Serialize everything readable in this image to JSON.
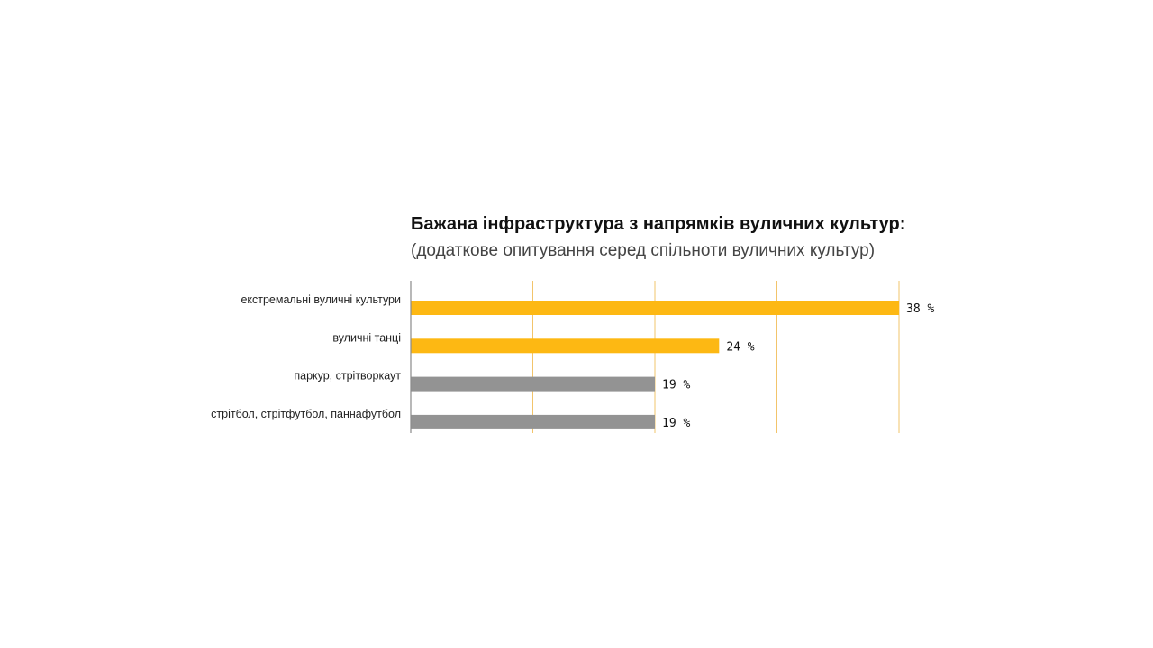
{
  "chart_data": {
    "type": "bar",
    "orientation": "horizontal",
    "title": "Бажана інфраструктура з напрямків вуличних культур:",
    "subtitle": "(додаткове опитування серед спільноти вуличних культур)",
    "categories": [
      "екстремальні вуличні культури",
      "вуличні танці",
      "паркур, стрітворкаут",
      "стрітбол, стрітфутбол, паннафутбол"
    ],
    "values": [
      38,
      24,
      19,
      19
    ],
    "value_labels": [
      "38 %",
      "24 %",
      "19 %",
      "19 %"
    ],
    "bar_colors": [
      "#FDB813",
      "#FDB813",
      "#939393",
      "#939393"
    ],
    "xlim": [
      0,
      38
    ],
    "gridlines": [
      0,
      9.5,
      19,
      28.5,
      38
    ],
    "grid_color": "#F2C46B",
    "axis_color": "#8a8a8a",
    "legend": "none"
  }
}
